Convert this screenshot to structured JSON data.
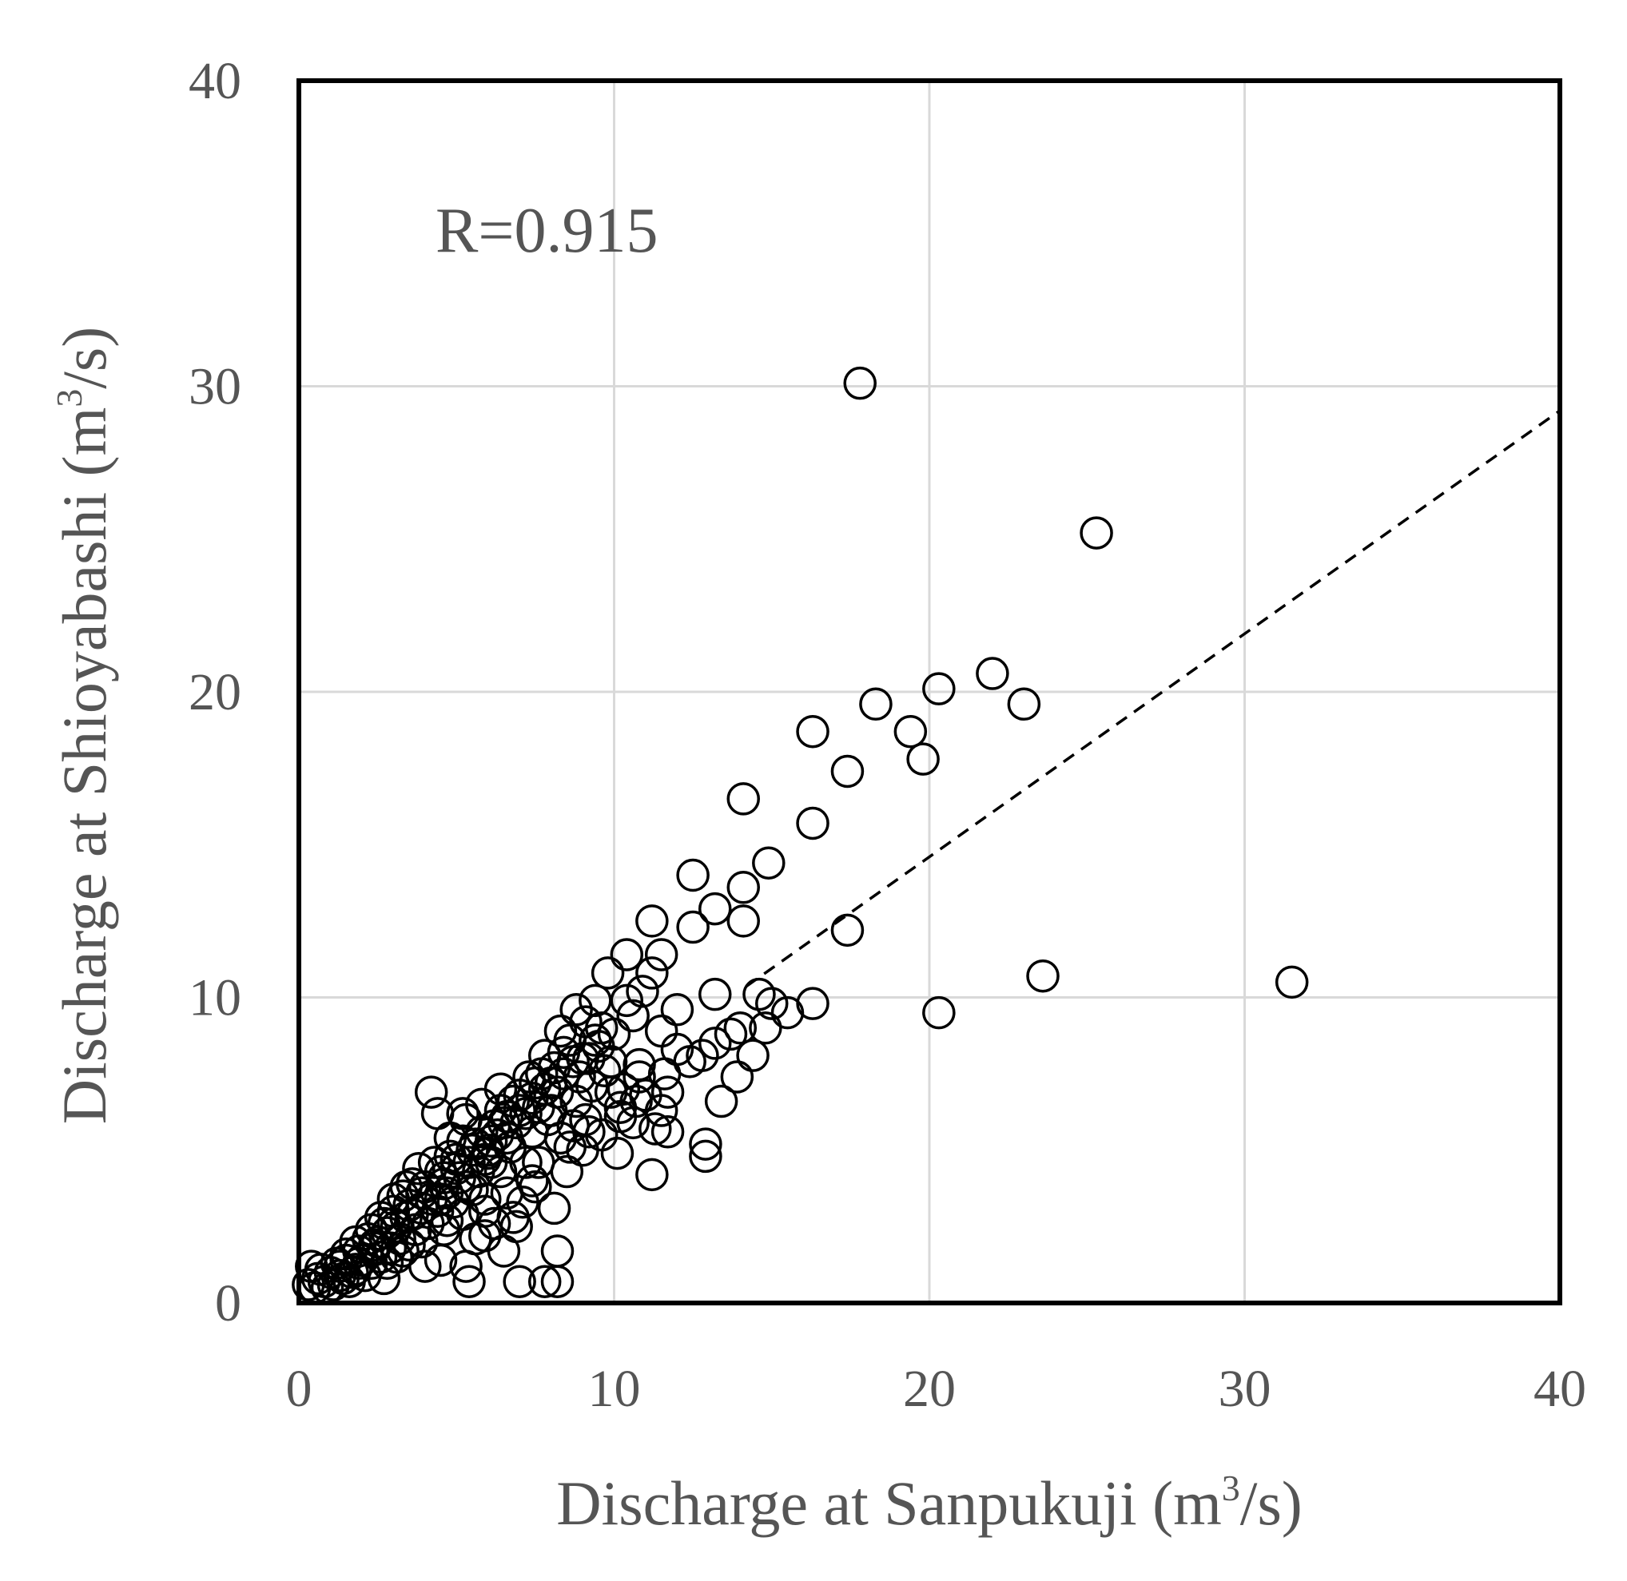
{
  "chart_data": {
    "type": "scatter",
    "xlabel": "Discharge at Sanpukuji (m",
    "xlabel_sup": "3",
    "xlabel_tail": "/s)",
    "ylabel": "Discharge at Shioyabashi (m",
    "ylabel_sup": "3",
    "ylabel_tail": "/s)",
    "annotation": "R=0.915",
    "xlim": [
      0,
      40
    ],
    "ylim": [
      0,
      40
    ],
    "xticks": [
      0,
      10,
      20,
      30,
      40
    ],
    "yticks": [
      0,
      10,
      20,
      30,
      40
    ],
    "grid": true,
    "marker": "open-circle",
    "trendline": {
      "style": "dashed",
      "slope": 0.73,
      "intercept": 0,
      "visible_from_x": 14.2
    },
    "series": [
      {
        "points": [
          [
            17.8,
            30.1
          ],
          [
            25.3,
            25.2
          ],
          [
            22.0,
            20.6
          ],
          [
            20.3,
            20.1
          ],
          [
            23.0,
            19.6
          ],
          [
            18.3,
            19.6
          ],
          [
            19.4,
            18.7
          ],
          [
            16.3,
            18.7
          ],
          [
            19.8,
            17.8
          ],
          [
            17.4,
            17.4
          ],
          [
            14.1,
            16.5
          ],
          [
            16.3,
            15.7
          ],
          [
            14.9,
            14.4
          ],
          [
            12.5,
            14.0
          ],
          [
            14.1,
            13.6
          ],
          [
            13.2,
            12.9
          ],
          [
            11.2,
            12.5
          ],
          [
            12.5,
            12.3
          ],
          [
            14.1,
            12.5
          ],
          [
            17.4,
            12.2
          ],
          [
            10.4,
            11.4
          ],
          [
            11.5,
            11.4
          ],
          [
            9.8,
            10.8
          ],
          [
            11.2,
            10.8
          ],
          [
            23.6,
            10.7
          ],
          [
            31.5,
            10.5
          ],
          [
            13.2,
            10.1
          ],
          [
            14.6,
            10.1
          ],
          [
            9.4,
            9.9
          ],
          [
            10.4,
            9.9
          ],
          [
            10.9,
            10.2
          ],
          [
            16.3,
            9.8
          ],
          [
            15.0,
            9.8
          ],
          [
            12.0,
            9.6
          ],
          [
            15.5,
            9.5
          ],
          [
            20.3,
            9.5
          ],
          [
            8.8,
            9.6
          ],
          [
            8.3,
            8.9
          ],
          [
            9.6,
            9.0
          ],
          [
            14.8,
            9.0
          ],
          [
            14.0,
            9.0
          ],
          [
            13.7,
            8.8
          ],
          [
            13.2,
            8.5
          ],
          [
            11.5,
            8.9
          ],
          [
            12.0,
            8.3
          ],
          [
            12.8,
            8.1
          ],
          [
            14.4,
            8.1
          ],
          [
            12.4,
            7.9
          ],
          [
            10.8,
            7.8
          ],
          [
            9.0,
            8.0
          ],
          [
            7.8,
            8.1
          ],
          [
            9.7,
            7.6
          ],
          [
            11.6,
            7.5
          ],
          [
            13.9,
            7.4
          ],
          [
            4.2,
            6.9
          ],
          [
            7.5,
            7.2
          ],
          [
            11.7,
            6.9
          ],
          [
            10.3,
            7.0
          ],
          [
            10.7,
            6.6
          ],
          [
            13.4,
            6.6
          ],
          [
            4.4,
            6.2
          ],
          [
            5.2,
            6.2
          ],
          [
            11.5,
            6.3
          ],
          [
            6.6,
            6.1
          ],
          [
            8.0,
            6.3
          ],
          [
            10.2,
            6.1
          ],
          [
            11.3,
            5.7
          ],
          [
            11.7,
            5.6
          ],
          [
            8.7,
            5.8
          ],
          [
            9.2,
            5.6
          ],
          [
            12.9,
            5.2
          ],
          [
            9.0,
            5.0
          ],
          [
            10.1,
            4.9
          ],
          [
            12.9,
            4.8
          ],
          [
            7.2,
            4.6
          ],
          [
            8.5,
            4.3
          ],
          [
            11.2,
            4.2
          ],
          [
            5.2,
            5.3
          ],
          [
            6.0,
            4.9
          ],
          [
            6.4,
            4.3
          ],
          [
            7.5,
            3.8
          ],
          [
            5.5,
            3.7
          ],
          [
            3.8,
            4.4
          ],
          [
            4.6,
            4.1
          ],
          [
            7.1,
            3.3
          ],
          [
            8.1,
            3.1
          ],
          [
            5.9,
            3.0
          ],
          [
            6.8,
            2.8
          ],
          [
            4.5,
            3.4
          ],
          [
            3.6,
            3.9
          ],
          [
            6.9,
            2.5
          ],
          [
            5.9,
            2.2
          ],
          [
            6.5,
            1.7
          ],
          [
            8.2,
            1.7
          ],
          [
            3.0,
            3.0
          ],
          [
            2.7,
            2.6
          ],
          [
            4.7,
            2.7
          ],
          [
            5.6,
            2.1
          ],
          [
            3.5,
            1.9
          ],
          [
            4.5,
            1.4
          ],
          [
            5.3,
            1.2
          ],
          [
            5.4,
            0.7
          ],
          [
            7.0,
            0.7
          ],
          [
            7.8,
            0.7
          ],
          [
            8.2,
            0.7
          ],
          [
            2.7,
            0.8
          ],
          [
            3.1,
            1.5
          ],
          [
            4.0,
            1.2
          ],
          [
            2.2,
            2.1
          ],
          [
            2.4,
            1.8
          ],
          [
            1.9,
            1.7
          ],
          [
            1.5,
            1.4
          ],
          [
            1.8,
            1.1
          ],
          [
            2.1,
            0.9
          ],
          [
            1.2,
            1.3
          ],
          [
            1.3,
            0.9
          ],
          [
            1.0,
            1.0
          ],
          [
            0.8,
            0.7
          ],
          [
            0.6,
            0.8
          ],
          [
            0.5,
            0.5
          ],
          [
            0.9,
            0.5
          ],
          [
            0.4,
            1.2
          ],
          [
            0.3,
            0.6
          ],
          [
            0.7,
            1.1
          ],
          [
            1.6,
            0.7
          ],
          [
            2.3,
            1.3
          ],
          [
            3.3,
            3.5
          ],
          [
            3.9,
            3.6
          ],
          [
            4.3,
            4.6
          ],
          [
            4.8,
            4.8
          ],
          [
            5.0,
            4.4
          ],
          [
            5.6,
            5.2
          ],
          [
            5.8,
            5.6
          ],
          [
            6.2,
            5.8
          ],
          [
            6.4,
            6.3
          ],
          [
            6.8,
            6.6
          ],
          [
            7.0,
            6.8
          ],
          [
            7.3,
            7.4
          ],
          [
            7.7,
            7.5
          ],
          [
            8.1,
            7.7
          ],
          [
            8.4,
            8.2
          ],
          [
            8.6,
            8.6
          ],
          [
            9.1,
            9.2
          ],
          [
            7.9,
            6.0
          ],
          [
            8.3,
            5.4
          ],
          [
            8.8,
            6.6
          ],
          [
            9.3,
            7.1
          ],
          [
            9.9,
            7.9
          ],
          [
            7.4,
            5.6
          ],
          [
            6.7,
            5.1
          ],
          [
            6.1,
            4.6
          ],
          [
            5.7,
            4.3
          ],
          [
            5.3,
            3.8
          ],
          [
            4.9,
            3.3
          ],
          [
            4.4,
            3.0
          ],
          [
            4.1,
            2.6
          ],
          [
            3.7,
            2.4
          ],
          [
            3.2,
            2.1
          ],
          [
            2.9,
            1.8
          ],
          [
            2.6,
            1.5
          ],
          [
            2.8,
            2.3
          ],
          [
            3.4,
            2.8
          ],
          [
            3.9,
            3.1
          ],
          [
            4.6,
            3.9
          ],
          [
            5.1,
            4.1
          ],
          [
            5.9,
            4.7
          ],
          [
            6.3,
            5.5
          ],
          [
            6.9,
            5.9
          ],
          [
            7.6,
            6.4
          ],
          [
            8.2,
            6.9
          ],
          [
            8.9,
            7.4
          ],
          [
            9.5,
            8.4
          ],
          [
            10.0,
            8.8
          ],
          [
            9.2,
            8.0
          ],
          [
            8.0,
            7.2
          ],
          [
            7.2,
            6.2
          ],
          [
            6.6,
            5.4
          ],
          [
            6.0,
            5.0
          ],
          [
            5.4,
            4.6
          ],
          [
            4.7,
            3.6
          ],
          [
            4.2,
            3.4
          ],
          [
            3.6,
            2.9
          ],
          [
            3.1,
            2.5
          ],
          [
            2.5,
            2.0
          ],
          [
            2.0,
            1.4
          ],
          [
            1.7,
            1.0
          ],
          [
            1.4,
            0.8
          ],
          [
            1.1,
            0.6
          ],
          [
            1.3,
            1.2
          ],
          [
            1.9,
            1.3
          ],
          [
            2.4,
            1.9
          ],
          [
            3.0,
            2.6
          ],
          [
            3.5,
            3.2
          ],
          [
            4.0,
            3.8
          ],
          [
            4.5,
            4.3
          ],
          [
            5.0,
            4.7
          ],
          [
            5.5,
            5.0
          ],
          [
            6.1,
            5.3
          ],
          [
            6.5,
            5.9
          ],
          [
            7.0,
            6.3
          ],
          [
            7.4,
            6.7
          ],
          [
            7.8,
            7.0
          ],
          [
            8.4,
            7.5
          ],
          [
            8.7,
            7.9
          ],
          [
            9.4,
            8.6
          ],
          [
            10.6,
            9.4
          ],
          [
            5.3,
            6.0
          ],
          [
            5.8,
            6.5
          ],
          [
            6.4,
            7.0
          ],
          [
            3.4,
            3.8
          ],
          [
            3.0,
            3.4
          ],
          [
            2.6,
            2.8
          ],
          [
            2.3,
            2.4
          ],
          [
            1.8,
            2.0
          ],
          [
            1.5,
            1.6
          ],
          [
            4.8,
            5.4
          ],
          [
            7.4,
            4.0
          ],
          [
            6.6,
            3.6
          ],
          [
            5.9,
            3.4
          ],
          [
            5.2,
            2.9
          ],
          [
            4.6,
            2.4
          ],
          [
            3.9,
            2.0
          ],
          [
            3.3,
            1.7
          ],
          [
            2.8,
            1.3
          ],
          [
            6.2,
            2.6
          ],
          [
            7.6,
            4.6
          ],
          [
            8.6,
            5.1
          ],
          [
            9.6,
            5.5
          ],
          [
            10.2,
            6.4
          ],
          [
            10.6,
            5.9
          ],
          [
            11.0,
            6.8
          ],
          [
            9.9,
            6.9
          ],
          [
            10.8,
            7.4
          ],
          [
            9.1,
            6.0
          ]
        ]
      }
    ]
  }
}
